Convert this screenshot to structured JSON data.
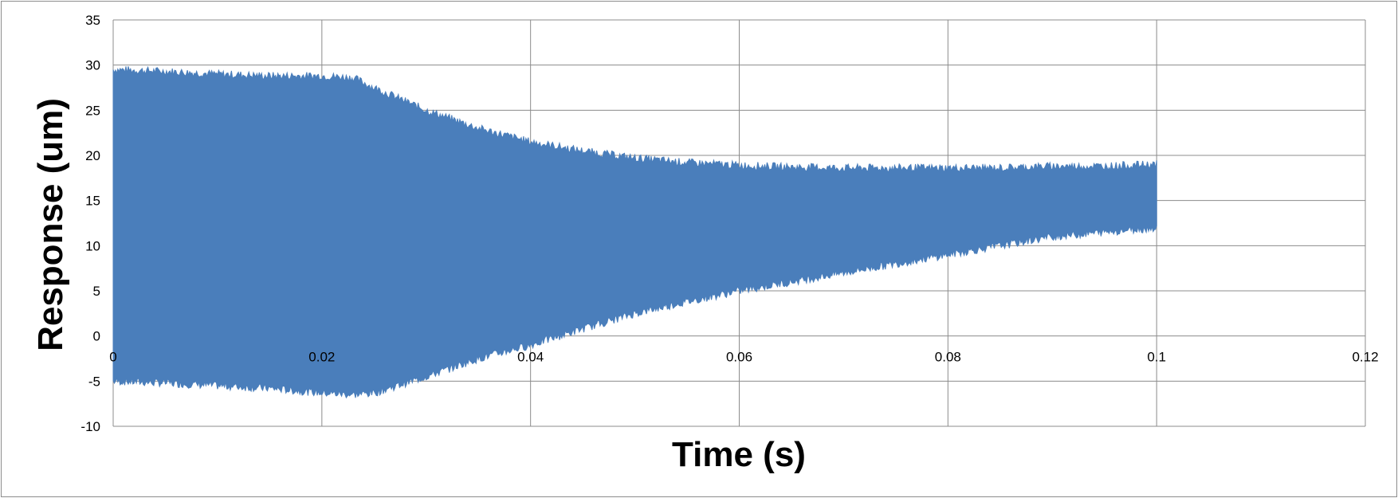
{
  "chart_data": {
    "type": "area",
    "title": "",
    "xlabel": "Time (s)",
    "ylabel": "Response (um)",
    "xlim": [
      0,
      0.12
    ],
    "ylim": [
      -10,
      35
    ],
    "x_ticks": [
      0,
      0.02,
      0.04,
      0.06,
      0.08,
      0.1,
      0.12
    ],
    "x_tick_labels": [
      "0",
      "0.02",
      "0.04",
      "0.06",
      "0.08",
      "0.1",
      "0.12"
    ],
    "y_ticks": [
      -10,
      -5,
      0,
      5,
      10,
      15,
      20,
      25,
      30,
      35
    ],
    "y_tick_labels": [
      "-10",
      "-5",
      "0",
      "5",
      "10",
      "15",
      "20",
      "25",
      "30",
      "35"
    ],
    "grid": true,
    "legend": "none",
    "color": "#4a7ebb",
    "series": [
      {
        "style": "oscillation-envelope",
        "x": [
          0,
          0.005,
          0.01,
          0.015,
          0.02,
          0.023,
          0.025,
          0.03,
          0.035,
          0.04,
          0.045,
          0.05,
          0.055,
          0.06,
          0.065,
          0.07,
          0.075,
          0.08,
          0.085,
          0.09,
          0.095,
          0.1
        ],
        "upper": [
          29.5,
          29.3,
          29.0,
          28.8,
          28.8,
          28.6,
          27.5,
          25.0,
          23.0,
          21.5,
          20.5,
          19.7,
          19.2,
          18.9,
          18.7,
          18.6,
          18.6,
          18.6,
          18.6,
          18.8,
          18.8,
          19.0
        ],
        "lower": [
          -5.0,
          -5.2,
          -5.5,
          -5.8,
          -6.3,
          -6.5,
          -6.3,
          -4.5,
          -2.5,
          -1.0,
          0.8,
          2.5,
          3.8,
          5.0,
          6.0,
          7.0,
          8.0,
          9.0,
          10.0,
          11.0,
          11.5,
          12.0
        ]
      }
    ]
  }
}
